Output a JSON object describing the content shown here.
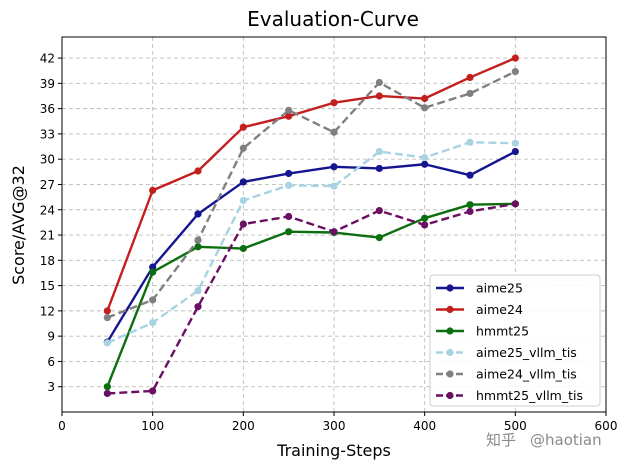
{
  "chart_data": {
    "type": "line",
    "title": "Evaluation-Curve",
    "xlabel": "Training-Steps",
    "ylabel": "Score/AVG@32",
    "xlim": [
      0,
      600
    ],
    "ylim": [
      0,
      44.5
    ],
    "xticks": [
      0,
      100,
      200,
      300,
      400,
      500,
      600
    ],
    "yticks": [
      3,
      6,
      9,
      12,
      15,
      18,
      21,
      24,
      27,
      30,
      33,
      36,
      39,
      42
    ],
    "grid": true,
    "legend_position": "lower-right",
    "x": [
      50,
      100,
      150,
      200,
      250,
      300,
      350,
      400,
      450,
      500
    ],
    "series": [
      {
        "name": "aime25",
        "color": "#15168f",
        "dash": "solid",
        "values": [
          8.3,
          17.2,
          23.5,
          27.3,
          28.3,
          29.1,
          28.9,
          29.4,
          28.1,
          30.9
        ]
      },
      {
        "name": "aime24",
        "color": "#c41f1f",
        "dash": "solid",
        "values": [
          12.0,
          26.3,
          28.6,
          33.8,
          35.1,
          36.7,
          37.5,
          37.2,
          39.7,
          42.0
        ]
      },
      {
        "name": "hmmt25",
        "color": "#0d6e10",
        "dash": "solid",
        "values": [
          3.0,
          16.6,
          19.6,
          19.4,
          21.4,
          21.3,
          20.7,
          23.0,
          24.6,
          24.7
        ]
      },
      {
        "name": "aime25_vllm_tis",
        "color": "#a7d3e3",
        "dash": "dashed",
        "values": [
          8.2,
          10.6,
          14.4,
          25.1,
          26.9,
          26.8,
          30.9,
          30.2,
          32.0,
          31.9
        ]
      },
      {
        "name": "aime24_vllm_tis",
        "color": "#808080",
        "dash": "dashed",
        "values": [
          11.2,
          13.3,
          20.4,
          31.3,
          35.8,
          33.2,
          39.1,
          36.1,
          37.8,
          40.4
        ]
      },
      {
        "name": "hmmt25_vllm_tis",
        "color": "#6b0f63",
        "dash": "dashed",
        "values": [
          2.2,
          2.5,
          12.5,
          22.3,
          23.2,
          21.4,
          23.9,
          22.2,
          23.8,
          24.7
        ]
      }
    ]
  },
  "watermark": {
    "brand": "知乎",
    "handle": "@haotian"
  }
}
